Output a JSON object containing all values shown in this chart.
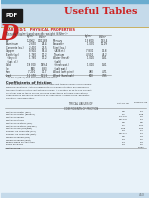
{
  "page_bg": "#e8f2f9",
  "header_bg": "#c5daea",
  "pdf_bg": "#1a1a1a",
  "header_text": "Useful Tables",
  "header_color": "#cc2222",
  "appendix_letter_color": "#cc2222",
  "table_title": "TABLE D/1   PHYSICAL PROPERTIES",
  "table_title_color": "#cc2222",
  "subtitle1": "Density (kg/m³) and specific weight (kN/m³)ᵃ",
  "separator_color": "#c8b060",
  "footnote1": "ᵃ At 20°C (68°F) and atmospheric pressure.",
  "section2_title": "Coefficients of friction",
  "phys_rows": [
    [
      "Air",
      "1.2062",
      "0.01183",
      "Mercury",
      "13 600",
      "133.4"
    ],
    [
      "Aluminum",
      "2 690",
      "26.4",
      "Seawater",
      "1 030",
      "10.09"
    ],
    [
      "Concrete (av.)",
      "2 400",
      "23.5",
      "Steel (av.)",
      "",
      ""
    ],
    [
      "Copper",
      "8 910",
      "87.4",
      "  (A36 st.)",
      "7 830",
      "76.8"
    ],
    [
      "Earth (av.)",
      "1 760",
      "17.2",
      "Titanium",
      "4 510",
      "44.2"
    ],
    [
      "  (dry cl.)",
      "1 760",
      "17.2",
      "Water (fresh)",
      "1 000",
      "9.81"
    ],
    [
      "  (sat. cl.)",
      "",
      "",
      "  (salt)",
      "",
      ""
    ],
    [
      "Gold",
      "19 300",
      "189.4",
      "  (fresh wat.)",
      "1 000",
      "9.81"
    ],
    [
      "Ice",
      "900",
      "8.83",
      "  (salt wat.)",
      "",
      ""
    ],
    [
      "Iron",
      "7 210",
      "70.7",
      "Wood (soft pine)",
      "480",
      "4.71"
    ],
    [
      "Lead",
      "11 370",
      "111.5",
      "Wood (hard oak)",
      "800",
      "7.85"
    ]
  ],
  "friction_rows": [
    [
      "Metal on metal (dry)",
      "0.6",
      "0.4"
    ],
    [
      "Metal on metal (greasy)",
      "0.1",
      "0.05"
    ],
    [
      "Metal on wood",
      "0.4–0.6",
      "0.2"
    ],
    [
      "Metal on stone",
      "0.5–0.6",
      "0.4"
    ],
    [
      "Metal on leather (dry)",
      "0.6",
      "0.5"
    ],
    [
      "Metal on leather (greasy)",
      "0.1",
      "0.07"
    ],
    [
      "Metal on ice (dry/wet)",
      "0.03",
      "0.01"
    ],
    [
      "Rubber on concrete (dry)",
      "0.9",
      "0.7"
    ],
    [
      "Rubber on concrete (wet)",
      "0.5–0.7",
      "0.4"
    ],
    [
      "Wood on wood (dry)",
      "0.5",
      "0.3"
    ],
    [
      "Wood on wood (wet)",
      "0.3",
      "0.2"
    ],
    [
      "Brake lining on cast iron",
      "0.4",
      "0.3"
    ],
    [
      "Rope on wood",
      "0.3",
      "0.2"
    ],
    [
      "Metal on air",
      "",
      "0.001"
    ]
  ],
  "page_number": "453",
  "desc_lines": [
    "The coefficients in the following table represent typical values under normal",
    "working conditions. Actual coefficients for a given situation will depend on",
    "the exact nature of the contacting surfaces. A variation of 25 to 100 percent",
    "on either side of these values could be expected in extreme applications,",
    "depending on prevailing conditions of cleanliness, surface finish, geometry,",
    "vibration, and lubrication."
  ]
}
